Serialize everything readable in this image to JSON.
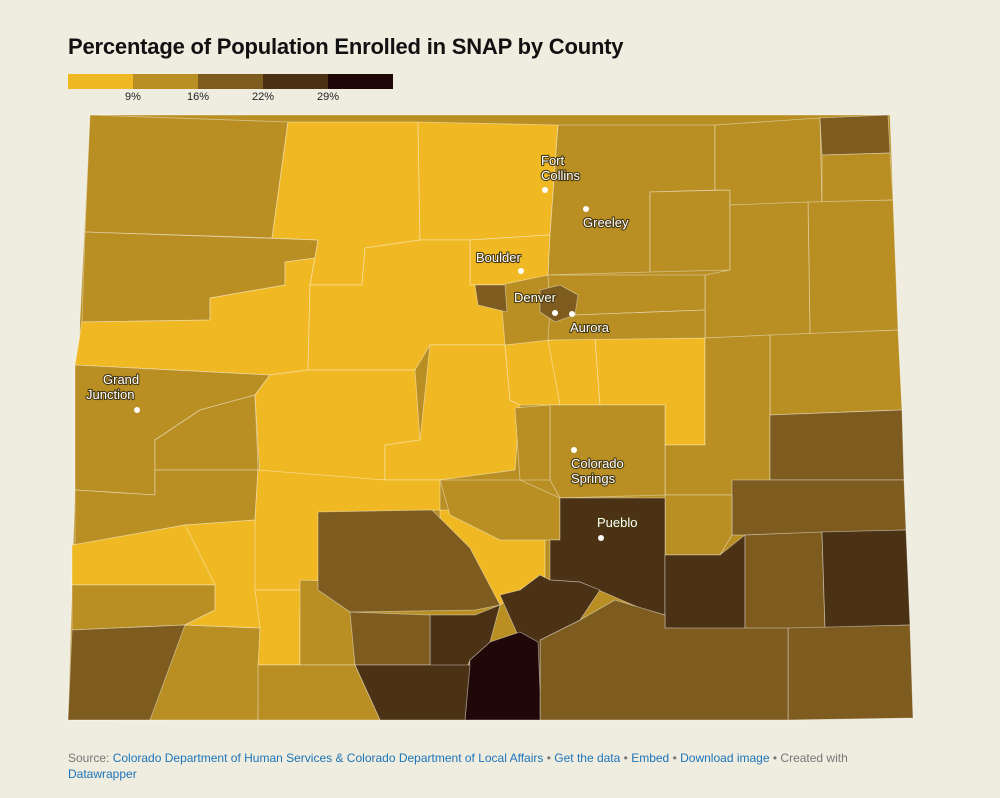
{
  "title": "Percentage of Population Enrolled in SNAP by County",
  "legend": {
    "colors": [
      "#f0b823",
      "#b98f24",
      "#7e5c20",
      "#4c3214",
      "#200808"
    ],
    "ticks": [
      "9%",
      "16%",
      "22%",
      "29%"
    ]
  },
  "cities": {
    "fort_collins": [
      "Fort",
      "Collins"
    ],
    "greeley": "Greeley",
    "boulder": "Boulder",
    "denver": "Denver",
    "aurora": "Aurora",
    "grand_junction": [
      "Grand",
      "Junction"
    ],
    "colorado_springs": [
      "Colorado",
      "Springs"
    ],
    "pueblo": "Pueblo"
  },
  "footer": {
    "source_label": "Source:",
    "source_link": "Colorado Department of Human Services & Colorado Department of Local Affairs",
    "get_data": "Get the data",
    "embed": "Embed",
    "download": "Download image",
    "created_with": "Created with",
    "datawrapper": "Datawrapper",
    "sep": "•"
  }
}
